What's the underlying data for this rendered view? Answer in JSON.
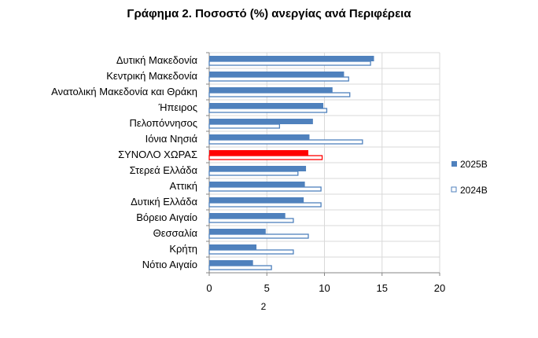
{
  "chart_data": {
    "type": "bar",
    "orientation": "horizontal",
    "title": "Γράφημα 2. Ποσοστό (%) ανεργίας ανά Περιφέρεια",
    "categories": [
      "Δυτική Μακεδονία",
      "Κεντρική Μακεδονία",
      "Ανατολική Μακεδονία και Θράκη",
      "Ήπειρος",
      "Πελοπόννησος",
      "Ιόνια Νησιά",
      "ΣΥΝΟΛΟ ΧΩΡΑΣ",
      "Στερεά Ελλάδα",
      "Αττική",
      "Δυτική Ελλάδα",
      "Βόρειο Αιγαίο",
      "Θεσσαλία",
      "Κρήτη",
      "Νότιο Αιγαίο"
    ],
    "series": [
      {
        "name": "2025Β",
        "style": "filled",
        "color": "#4f81bd",
        "values": [
          14.3,
          11.7,
          10.7,
          9.9,
          9.0,
          8.7,
          8.6,
          8.4,
          8.3,
          8.2,
          6.6,
          4.9,
          4.1,
          3.8
        ]
      },
      {
        "name": "2024Β",
        "style": "outline",
        "color": "#4f81bd",
        "values": [
          14.0,
          12.1,
          12.2,
          10.2,
          6.1,
          13.3,
          9.8,
          7.7,
          9.7,
          9.7,
          7.3,
          8.6,
          7.3,
          5.4
        ]
      }
    ],
    "highlight": {
      "category": "ΣΥΝΟΛΟ ΧΩΡΑΣ",
      "color": "#ff0000"
    },
    "xlim": [
      0,
      20
    ],
    "xticks": [
      "0",
      "5",
      "10",
      "15",
      "20"
    ],
    "grid": true,
    "legend": "right",
    "footnote": "2"
  }
}
